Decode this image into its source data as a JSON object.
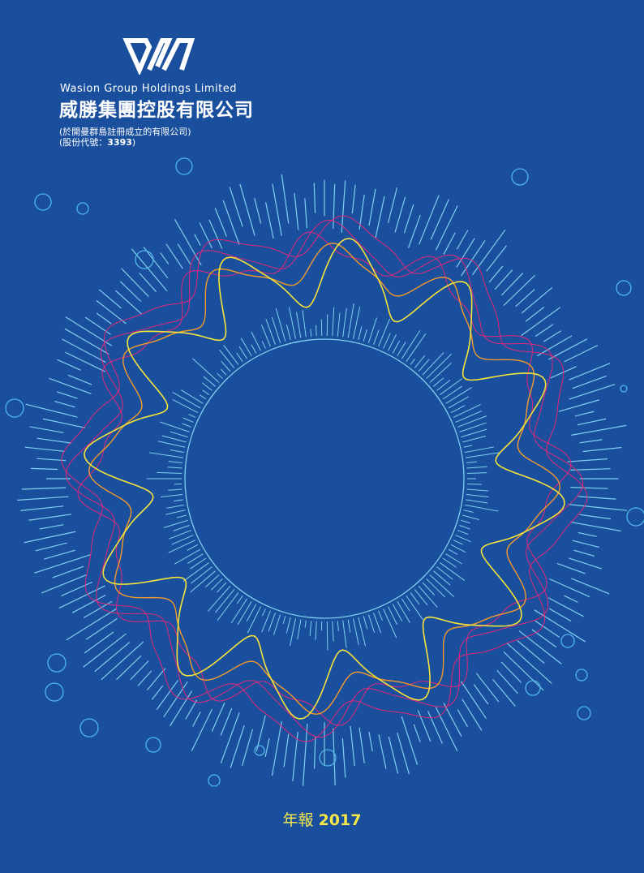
{
  "cover": {
    "company_en": "Wasion Group Holdings Limited",
    "company_zh": "威勝集團控股有限公司",
    "incorporation_note": "(於開曼群島註冊成立的有限公司)",
    "stock_code_label": "(股份代號：",
    "stock_code": "3393",
    "stock_code_close": ")",
    "report_label": "年報",
    "report_year": "2017"
  },
  "colors": {
    "background": "#1a4f9e",
    "ticks": "#7fd0ec",
    "wave_yellow": "#f6e43a",
    "wave_orange": "#f39a2a",
    "wave_pink": "#e0287a",
    "year_text": "#f4e84a"
  },
  "icons": [
    "wasion-logo"
  ]
}
